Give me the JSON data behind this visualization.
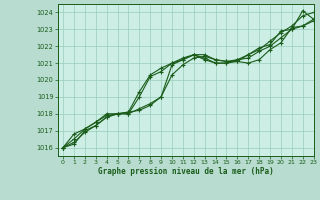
{
  "title": "Graphe pression niveau de la mer (hPa)",
  "bg_color": "#b8ddd0",
  "plot_bg_color": "#cceee4",
  "grid_color": "#99ccbb",
  "line_color": "#1a5c1a",
  "xlim": [
    -0.5,
    23
  ],
  "ylim": [
    1015.5,
    1024.5
  ],
  "yticks": [
    1016,
    1017,
    1018,
    1019,
    1020,
    1021,
    1022,
    1023,
    1024
  ],
  "xticks": [
    0,
    1,
    2,
    3,
    4,
    5,
    6,
    7,
    8,
    9,
    10,
    11,
    12,
    13,
    14,
    15,
    16,
    17,
    18,
    19,
    20,
    21,
    22,
    23
  ],
  "series": [
    {
      "x": [
        0,
        1,
        2,
        3,
        4,
        5,
        6,
        7,
        8,
        9,
        10,
        11,
        12,
        13,
        14,
        15,
        16,
        17,
        18,
        19,
        20,
        21,
        22,
        23
      ],
      "y": [
        1016.0,
        1016.8,
        1017.1,
        1017.5,
        1018.0,
        1018.0,
        1018.1,
        1018.2,
        1018.5,
        1019.0,
        1020.9,
        1021.2,
        1021.5,
        1021.5,
        1021.2,
        1021.1,
        1021.1,
        1021.0,
        1021.2,
        1021.8,
        1022.2,
        1023.1,
        1023.2,
        1023.5
      ],
      "marker": "+"
    },
    {
      "x": [
        0,
        1,
        2,
        3,
        4,
        5,
        6,
        7,
        8,
        9,
        10,
        11,
        12,
        13,
        14,
        15,
        16,
        17,
        18,
        19,
        20,
        21,
        22,
        23
      ],
      "y": [
        1016.0,
        1016.5,
        1017.1,
        1017.5,
        1017.9,
        1018.0,
        1018.0,
        1018.3,
        1018.6,
        1019.0,
        1020.3,
        1020.9,
        1021.3,
        1021.4,
        1021.2,
        1021.1,
        1021.2,
        1021.3,
        1021.7,
        1022.0,
        1022.5,
        1023.0,
        1023.2,
        1023.6
      ],
      "marker": "+"
    },
    {
      "x": [
        0,
        1,
        2,
        3,
        4,
        5,
        6,
        7,
        8,
        9,
        10,
        11,
        12,
        13,
        14,
        15,
        16,
        17,
        18,
        19,
        20,
        21,
        22,
        23
      ],
      "y": [
        1016.0,
        1016.3,
        1016.9,
        1017.3,
        1017.8,
        1018.0,
        1018.1,
        1019.3,
        1020.3,
        1020.7,
        1021.0,
        1021.3,
        1021.5,
        1021.2,
        1021.0,
        1021.0,
        1021.1,
        1021.5,
        1021.8,
        1022.3,
        1022.8,
        1023.2,
        1023.8,
        1024.0
      ],
      "marker": "+"
    },
    {
      "x": [
        0,
        1,
        2,
        3,
        4,
        5,
        6,
        7,
        8,
        9,
        10,
        11,
        12,
        13,
        14,
        15,
        16,
        17,
        18,
        19,
        20,
        21,
        22,
        23
      ],
      "y": [
        1016.0,
        1016.2,
        1017.0,
        1017.3,
        1017.8,
        1018.0,
        1018.0,
        1019.0,
        1020.2,
        1020.5,
        1021.0,
        1021.2,
        1021.5,
        1021.3,
        1021.0,
        1021.0,
        1021.2,
        1021.5,
        1021.9,
        1022.1,
        1022.9,
        1023.0,
        1024.1,
        1023.6
      ],
      "marker": "+"
    }
  ]
}
